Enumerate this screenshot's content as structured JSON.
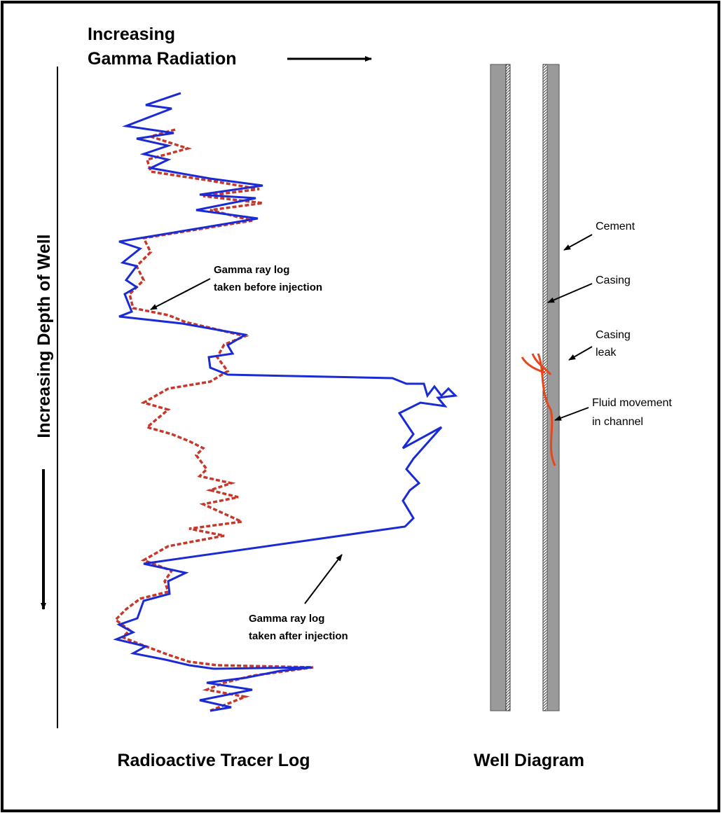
{
  "header": {
    "lines": [
      "Increasing",
      "Gamma Radiation"
    ]
  },
  "depth_label": "Increasing Depth of Well",
  "log_annotations": [
    {
      "lines": [
        "Gamma ray log",
        "taken before injection"
      ]
    },
    {
      "lines": [
        "Gamma ray log",
        "taken after injection"
      ]
    }
  ],
  "well_labels": [
    {
      "lines": [
        "Cement"
      ]
    },
    {
      "lines": [
        "Casing"
      ]
    },
    {
      "lines": [
        "Casing",
        "leak"
      ]
    },
    {
      "lines": [
        "Fluid movement",
        "in channel"
      ]
    }
  ],
  "captions": [
    "Radioactive Tracer Log",
    "Well Diagram"
  ]
}
